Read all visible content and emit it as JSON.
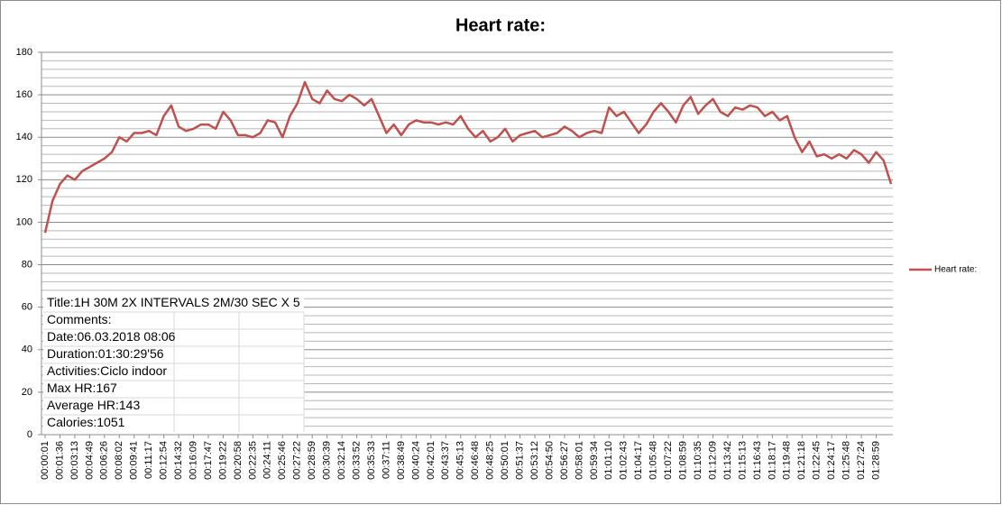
{
  "chart_data": {
    "type": "line",
    "title": "Heart rate:",
    "categories": [
      "00:00:01",
      null,
      "00:01:36",
      null,
      "00:03:13",
      null,
      "00:04:49",
      null,
      "00:06:26",
      null,
      "00:08:02",
      null,
      "00:09:41",
      null,
      "00:11:17",
      null,
      "00:12:54",
      null,
      "00:14:32",
      null,
      "00:16:09",
      null,
      "00:17:47",
      null,
      "00:19:22",
      null,
      "00:20:58",
      null,
      "00:22:35",
      null,
      "00:24:11",
      null,
      "00:25:46",
      null,
      "00:27:22",
      null,
      "00:28:59",
      null,
      "00:30:39",
      null,
      "00:32:14",
      null,
      "00:33:52",
      null,
      "00:35:33",
      null,
      "00:37:11",
      null,
      "00:38:49",
      null,
      "00:40:24",
      null,
      "00:42:01",
      null,
      "00:43:37",
      null,
      "00:45:13",
      null,
      "00:46:48",
      null,
      "00:48:25",
      null,
      "00:50:01",
      null,
      "00:51:37",
      null,
      "00:53:12",
      null,
      "00:54:50",
      null,
      "00:56:27",
      null,
      "00:58:01",
      null,
      "00:59:34",
      null,
      "01:01:10",
      null,
      "01:02:43",
      null,
      "01:04:17",
      null,
      "01:05:48",
      null,
      "01:07:22",
      null,
      "01:08:59",
      null,
      "01:10:35",
      null,
      "01:12:09",
      null,
      "01:13:42",
      null,
      "01:15:13",
      null,
      "01:16:43",
      null,
      "01:18:17",
      null,
      "01:19:48",
      null,
      "01:21:18",
      null,
      "01:22:45",
      null,
      "01:24:17",
      null,
      "01:25:48",
      null,
      "01:27:24",
      null,
      "01:28:59",
      null,
      null
    ],
    "series": [
      {
        "name": "Heart rate:",
        "color": "#c0504d",
        "values": [
          95,
          110,
          118,
          122,
          120,
          124,
          126,
          128,
          130,
          133,
          140,
          138,
          142,
          142,
          143,
          141,
          150,
          155,
          145,
          143,
          144,
          146,
          146,
          144,
          152,
          148,
          141,
          141,
          140,
          142,
          148,
          147,
          140,
          150,
          156,
          166,
          158,
          156,
          162,
          158,
          157,
          160,
          158,
          155,
          158,
          150,
          142,
          146,
          141,
          146,
          148,
          147,
          147,
          146,
          147,
          146,
          150,
          144,
          140,
          143,
          138,
          140,
          144,
          138,
          141,
          142,
          143,
          140,
          141,
          142,
          145,
          143,
          140,
          142,
          143,
          142,
          154,
          150,
          152,
          147,
          142,
          146,
          152,
          156,
          152,
          147,
          155,
          159,
          151,
          155,
          158,
          152,
          150,
          154,
          153,
          155,
          154,
          150,
          152,
          148,
          150,
          140,
          133,
          138,
          131,
          132,
          130,
          132,
          130,
          134,
          132,
          128,
          133,
          129,
          118
        ]
      }
    ],
    "ylim": [
      0,
      180
    ],
    "yticks": [
      0,
      20,
      40,
      60,
      80,
      100,
      120,
      140,
      160,
      180
    ],
    "grid": true,
    "minor_grid": true,
    "legend": "right",
    "info_box": [
      "Title:1H 30M 2X INTERVALS 2M/30 SEC X 5",
      "Comments:",
      "Date:06.03.2018 08:06",
      "Duration:01:30:29'56",
      "Activities:Ciclo indoor",
      "Max HR:167",
      "Average HR:143",
      "Calories:1051"
    ]
  }
}
